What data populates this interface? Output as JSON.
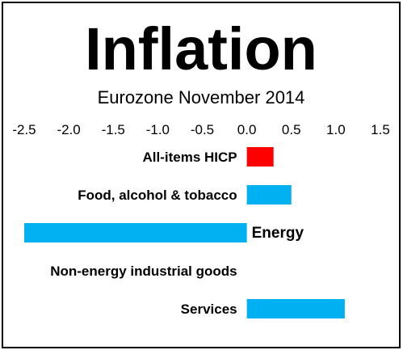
{
  "chart_data": {
    "type": "bar",
    "orientation": "horizontal",
    "title": "Inflation",
    "subtitle": "Eurozone November 2014",
    "xlim": [
      -2.5,
      1.5
    ],
    "x_ticks": [
      "-2.5",
      "-2.0",
      "-1.5",
      "-1.0",
      "-0.5",
      "0.0",
      "0.5",
      "1.0",
      "1.5"
    ],
    "x_tick_values": [
      -2.5,
      -2.0,
      -1.5,
      -1.0,
      -0.5,
      0.0,
      0.5,
      1.0,
      1.5
    ],
    "xaxis_position": "top",
    "grid": false,
    "categories": [
      "All-items HICP",
      "Food, alcohol & tobacco",
      "Energy",
      "Non-energy industrial goods",
      "Services"
    ],
    "values": [
      0.3,
      0.5,
      -2.5,
      0.0,
      1.1
    ],
    "bar_colors": [
      "#ff0000",
      "#00b0f0",
      "#00b0f0",
      "#00b0f0",
      "#00b0f0"
    ]
  }
}
